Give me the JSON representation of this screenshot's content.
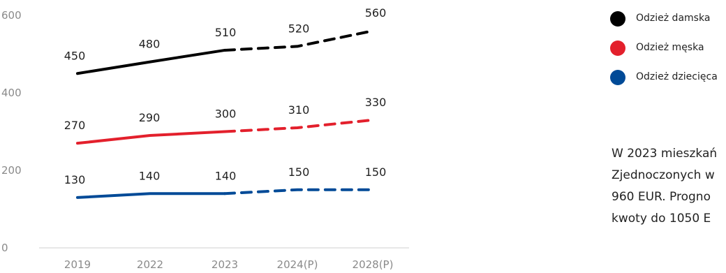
{
  "chart_data": {
    "type": "line",
    "categories": [
      "2019",
      "2022",
      "2023",
      "2024(P)",
      "2028(P)"
    ],
    "series": [
      {
        "name": "Odzież damska",
        "color": "#000000",
        "values": [
          450,
          480,
          510,
          520,
          560
        ],
        "value_labels": [
          "450",
          "480",
          "510",
          "520",
          "560"
        ]
      },
      {
        "name": "Odzież męska",
        "color": "#e3202c",
        "values": [
          270,
          290,
          300,
          310,
          330
        ],
        "value_labels": [
          "270",
          "290",
          "300",
          "310",
          "330"
        ]
      },
      {
        "name": "Odzież dziecięca",
        "color": "#004a97",
        "values": [
          130,
          140,
          140,
          150,
          150
        ],
        "value_labels": [
          "130",
          "140",
          "140",
          "150",
          "150"
        ]
      }
    ],
    "y_ticks": [
      "0",
      "200",
      "400",
      "600"
    ],
    "ylim": [
      0,
      600
    ],
    "grid": false,
    "legend_position": "right",
    "projection_style": "dashed",
    "solid_through_index": 2
  },
  "note_lines": [
    "W 2023 mieszkań",
    "Zjednoczonych w",
    "960 EUR. Progno",
    "kwoty do 1050 E"
  ]
}
